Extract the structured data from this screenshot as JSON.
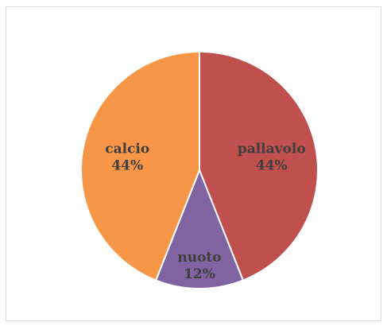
{
  "chart_data": {
    "type": "pie",
    "title": "",
    "categories": [
      "pallavolo",
      "nuoto",
      "calcio"
    ],
    "values": [
      44,
      12,
      44
    ],
    "labels": [
      "44%",
      "12%",
      "44%"
    ],
    "colors": [
      "#c0504d",
      "#8064a2",
      "#f79646"
    ],
    "legend": "none"
  }
}
